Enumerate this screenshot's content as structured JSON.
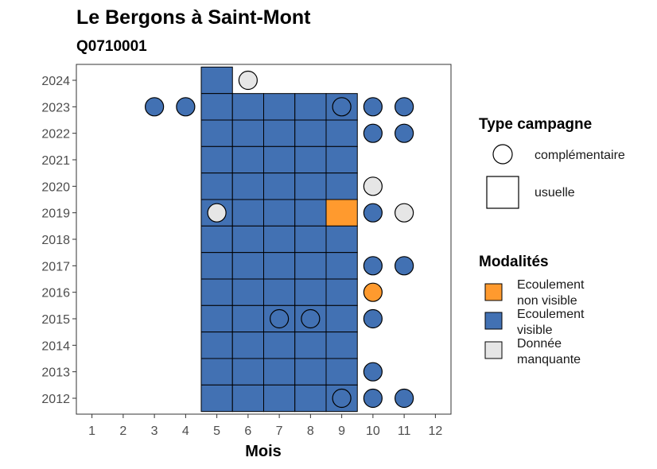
{
  "chart_data": {
    "type": "heatmap",
    "title": "Le Bergons à Saint-Mont",
    "subtitle": "Q0710001",
    "xlabel": "Mois",
    "ylabel": "",
    "x_ticks": [
      "1",
      "2",
      "3",
      "4",
      "5",
      "6",
      "7",
      "8",
      "9",
      "10",
      "11",
      "12"
    ],
    "y_ticks": [
      "2012",
      "2013",
      "2014",
      "2015",
      "2016",
      "2017",
      "2018",
      "2019",
      "2020",
      "2021",
      "2022",
      "2023",
      "2024"
    ],
    "xlim": [
      0.5,
      12.5
    ],
    "ylim": [
      2011.4,
      2024.6
    ],
    "grid": false,
    "colors": {
      "ecoulement_non_visible": "#FF9A2E",
      "ecoulement_visible": "#4271B3",
      "donnee_manquante": "#E6E6E6"
    },
    "legend_type": {
      "title": "Type campagne",
      "entries": [
        {
          "label": "complémentaire",
          "shape": "circle"
        },
        {
          "label": "usuelle",
          "shape": "square"
        }
      ]
    },
    "legend_modalites": {
      "title": "Modalités",
      "entries": [
        {
          "key": "ecoulement_non_visible",
          "lines": [
            "Ecoulement",
            "non visible"
          ]
        },
        {
          "key": "ecoulement_visible",
          "lines": [
            "Ecoulement",
            "visible"
          ]
        },
        {
          "key": "donnee_manquante",
          "lines": [
            "Donnée",
            "manquante"
          ]
        }
      ]
    },
    "points": [
      {
        "year": 2024,
        "month": 5,
        "type": "usuelle",
        "modalite": "ecoulement_visible"
      },
      {
        "year": 2024,
        "month": 6,
        "type": "complementaire",
        "modalite": "donnee_manquante"
      },
      {
        "year": 2023,
        "month": 3,
        "type": "complementaire",
        "modalite": "ecoulement_visible"
      },
      {
        "year": 2023,
        "month": 4,
        "type": "complementaire",
        "modalite": "ecoulement_visible"
      },
      {
        "year": 2023,
        "month": 5,
        "type": "usuelle",
        "modalite": "ecoulement_visible"
      },
      {
        "year": 2023,
        "month": 6,
        "type": "usuelle",
        "modalite": "ecoulement_visible"
      },
      {
        "year": 2023,
        "month": 7,
        "type": "usuelle",
        "modalite": "ecoulement_visible"
      },
      {
        "year": 2023,
        "month": 8,
        "type": "usuelle",
        "modalite": "ecoulement_visible"
      },
      {
        "year": 2023,
        "month": 9,
        "type": "usuelle",
        "modalite": "ecoulement_visible"
      },
      {
        "year": 2023,
        "month": 9,
        "type": "complementaire",
        "modalite": "ecoulement_visible"
      },
      {
        "year": 2023,
        "month": 10,
        "type": "complementaire",
        "modalite": "ecoulement_visible"
      },
      {
        "year": 2023,
        "month": 11,
        "type": "complementaire",
        "modalite": "ecoulement_visible"
      },
      {
        "year": 2022,
        "month": 5,
        "type": "usuelle",
        "modalite": "ecoulement_visible"
      },
      {
        "year": 2022,
        "month": 6,
        "type": "usuelle",
        "modalite": "ecoulement_visible"
      },
      {
        "year": 2022,
        "month": 7,
        "type": "usuelle",
        "modalite": "ecoulement_visible"
      },
      {
        "year": 2022,
        "month": 8,
        "type": "usuelle",
        "modalite": "ecoulement_visible"
      },
      {
        "year": 2022,
        "month": 9,
        "type": "usuelle",
        "modalite": "ecoulement_visible"
      },
      {
        "year": 2022,
        "month": 10,
        "type": "complementaire",
        "modalite": "ecoulement_visible"
      },
      {
        "year": 2022,
        "month": 11,
        "type": "complementaire",
        "modalite": "ecoulement_visible"
      },
      {
        "year": 2021,
        "month": 5,
        "type": "usuelle",
        "modalite": "ecoulement_visible"
      },
      {
        "year": 2021,
        "month": 6,
        "type": "usuelle",
        "modalite": "ecoulement_visible"
      },
      {
        "year": 2021,
        "month": 7,
        "type": "usuelle",
        "modalite": "ecoulement_visible"
      },
      {
        "year": 2021,
        "month": 8,
        "type": "usuelle",
        "modalite": "ecoulement_visible"
      },
      {
        "year": 2021,
        "month": 9,
        "type": "usuelle",
        "modalite": "ecoulement_visible"
      },
      {
        "year": 2020,
        "month": 5,
        "type": "usuelle",
        "modalite": "ecoulement_visible"
      },
      {
        "year": 2020,
        "month": 6,
        "type": "usuelle",
        "modalite": "ecoulement_visible"
      },
      {
        "year": 2020,
        "month": 7,
        "type": "usuelle",
        "modalite": "ecoulement_visible"
      },
      {
        "year": 2020,
        "month": 8,
        "type": "usuelle",
        "modalite": "ecoulement_visible"
      },
      {
        "year": 2020,
        "month": 9,
        "type": "usuelle",
        "modalite": "ecoulement_visible"
      },
      {
        "year": 2020,
        "month": 10,
        "type": "complementaire",
        "modalite": "donnee_manquante"
      },
      {
        "year": 2019,
        "month": 5,
        "type": "usuelle",
        "modalite": "ecoulement_visible"
      },
      {
        "year": 2019,
        "month": 5,
        "type": "complementaire",
        "modalite": "donnee_manquante"
      },
      {
        "year": 2019,
        "month": 6,
        "type": "usuelle",
        "modalite": "ecoulement_visible"
      },
      {
        "year": 2019,
        "month": 7,
        "type": "usuelle",
        "modalite": "ecoulement_visible"
      },
      {
        "year": 2019,
        "month": 8,
        "type": "usuelle",
        "modalite": "ecoulement_visible"
      },
      {
        "year": 2019,
        "month": 9,
        "type": "usuelle",
        "modalite": "ecoulement_non_visible"
      },
      {
        "year": 2019,
        "month": 10,
        "type": "complementaire",
        "modalite": "ecoulement_visible"
      },
      {
        "year": 2019,
        "month": 11,
        "type": "complementaire",
        "modalite": "donnee_manquante"
      },
      {
        "year": 2018,
        "month": 5,
        "type": "usuelle",
        "modalite": "ecoulement_visible"
      },
      {
        "year": 2018,
        "month": 6,
        "type": "usuelle",
        "modalite": "ecoulement_visible"
      },
      {
        "year": 2018,
        "month": 7,
        "type": "usuelle",
        "modalite": "ecoulement_visible"
      },
      {
        "year": 2018,
        "month": 8,
        "type": "usuelle",
        "modalite": "ecoulement_visible"
      },
      {
        "year": 2018,
        "month": 9,
        "type": "usuelle",
        "modalite": "ecoulement_visible"
      },
      {
        "year": 2017,
        "month": 5,
        "type": "usuelle",
        "modalite": "ecoulement_visible"
      },
      {
        "year": 2017,
        "month": 6,
        "type": "usuelle",
        "modalite": "ecoulement_visible"
      },
      {
        "year": 2017,
        "month": 7,
        "type": "usuelle",
        "modalite": "ecoulement_visible"
      },
      {
        "year": 2017,
        "month": 8,
        "type": "usuelle",
        "modalite": "ecoulement_visible"
      },
      {
        "year": 2017,
        "month": 9,
        "type": "usuelle",
        "modalite": "ecoulement_visible"
      },
      {
        "year": 2017,
        "month": 10,
        "type": "complementaire",
        "modalite": "ecoulement_visible"
      },
      {
        "year": 2017,
        "month": 11,
        "type": "complementaire",
        "modalite": "ecoulement_visible"
      },
      {
        "year": 2016,
        "month": 5,
        "type": "usuelle",
        "modalite": "ecoulement_visible"
      },
      {
        "year": 2016,
        "month": 6,
        "type": "usuelle",
        "modalite": "ecoulement_visible"
      },
      {
        "year": 2016,
        "month": 7,
        "type": "usuelle",
        "modalite": "ecoulement_visible"
      },
      {
        "year": 2016,
        "month": 8,
        "type": "usuelle",
        "modalite": "ecoulement_visible"
      },
      {
        "year": 2016,
        "month": 9,
        "type": "usuelle",
        "modalite": "ecoulement_visible"
      },
      {
        "year": 2016,
        "month": 10,
        "type": "complementaire",
        "modalite": "ecoulement_non_visible"
      },
      {
        "year": 2015,
        "month": 5,
        "type": "usuelle",
        "modalite": "ecoulement_visible"
      },
      {
        "year": 2015,
        "month": 6,
        "type": "usuelle",
        "modalite": "ecoulement_visible"
      },
      {
        "year": 2015,
        "month": 7,
        "type": "usuelle",
        "modalite": "ecoulement_visible"
      },
      {
        "year": 2015,
        "month": 7,
        "type": "complementaire",
        "modalite": "ecoulement_visible"
      },
      {
        "year": 2015,
        "month": 8,
        "type": "usuelle",
        "modalite": "ecoulement_visible"
      },
      {
        "year": 2015,
        "month": 8,
        "type": "complementaire",
        "modalite": "ecoulement_visible"
      },
      {
        "year": 2015,
        "month": 9,
        "type": "usuelle",
        "modalite": "ecoulement_visible"
      },
      {
        "year": 2015,
        "month": 10,
        "type": "complementaire",
        "modalite": "ecoulement_visible"
      },
      {
        "year": 2014,
        "month": 5,
        "type": "usuelle",
        "modalite": "ecoulement_visible"
      },
      {
        "year": 2014,
        "month": 6,
        "type": "usuelle",
        "modalite": "ecoulement_visible"
      },
      {
        "year": 2014,
        "month": 7,
        "type": "usuelle",
        "modalite": "ecoulement_visible"
      },
      {
        "year": 2014,
        "month": 8,
        "type": "usuelle",
        "modalite": "ecoulement_visible"
      },
      {
        "year": 2014,
        "month": 9,
        "type": "usuelle",
        "modalite": "ecoulement_visible"
      },
      {
        "year": 2013,
        "month": 5,
        "type": "usuelle",
        "modalite": "ecoulement_visible"
      },
      {
        "year": 2013,
        "month": 6,
        "type": "usuelle",
        "modalite": "ecoulement_visible"
      },
      {
        "year": 2013,
        "month": 7,
        "type": "usuelle",
        "modalite": "ecoulement_visible"
      },
      {
        "year": 2013,
        "month": 8,
        "type": "usuelle",
        "modalite": "ecoulement_visible"
      },
      {
        "year": 2013,
        "month": 9,
        "type": "usuelle",
        "modalite": "ecoulement_visible"
      },
      {
        "year": 2013,
        "month": 10,
        "type": "complementaire",
        "modalite": "ecoulement_visible"
      },
      {
        "year": 2012,
        "month": 5,
        "type": "usuelle",
        "modalite": "ecoulement_visible"
      },
      {
        "year": 2012,
        "month": 6,
        "type": "usuelle",
        "modalite": "ecoulement_visible"
      },
      {
        "year": 2012,
        "month": 7,
        "type": "usuelle",
        "modalite": "ecoulement_visible"
      },
      {
        "year": 2012,
        "month": 8,
        "type": "usuelle",
        "modalite": "ecoulement_visible"
      },
      {
        "year": 2012,
        "month": 9,
        "type": "usuelle",
        "modalite": "ecoulement_visible"
      },
      {
        "year": 2012,
        "month": 9,
        "type": "complementaire",
        "modalite": "ecoulement_visible"
      },
      {
        "year": 2012,
        "month": 10,
        "type": "complementaire",
        "modalite": "ecoulement_visible"
      },
      {
        "year": 2012,
        "month": 11,
        "type": "complementaire",
        "modalite": "ecoulement_visible"
      }
    ]
  }
}
